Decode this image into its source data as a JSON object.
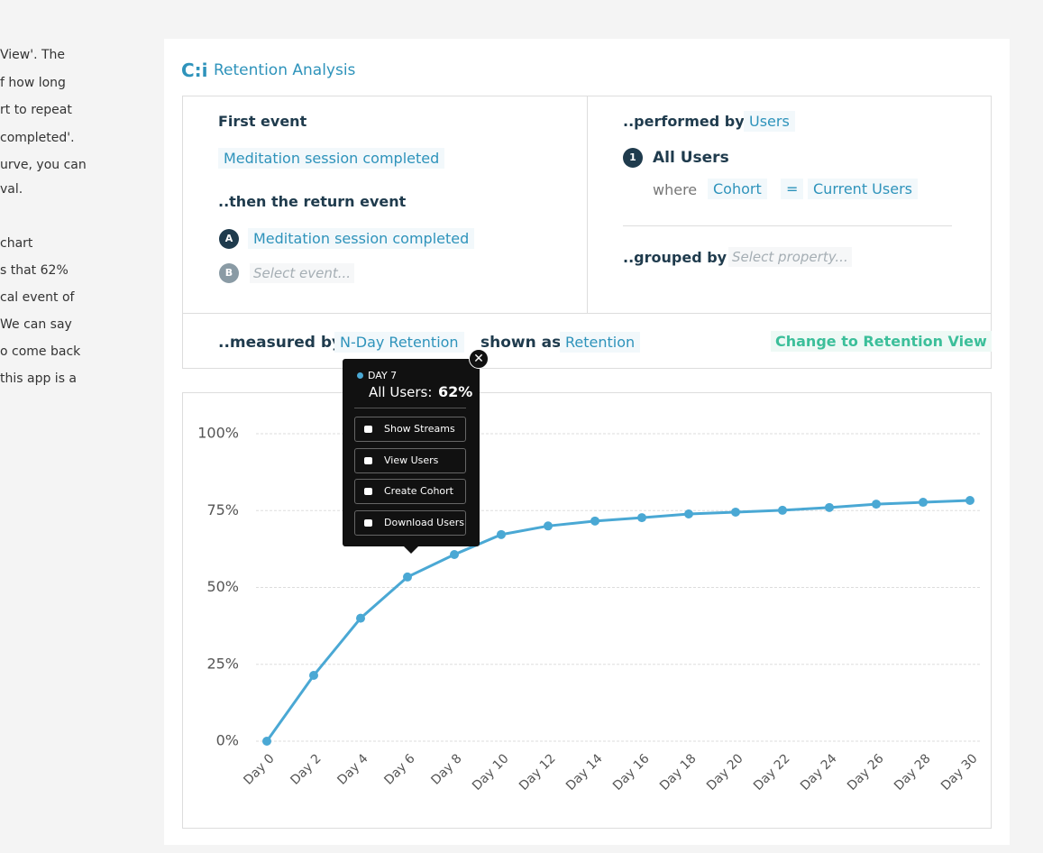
{
  "side_text": {
    "lines": [
      "View'. The",
      "f how long",
      "rt to repeat",
      "completed'.",
      "urve, you can",
      "val.",
      "chart",
      "s that 62%",
      "cal event of",
      "We can say",
      "o come back",
      "this app is a"
    ]
  },
  "panel": {
    "title": "Retention Analysis",
    "first_event": {
      "label": "First event",
      "value": "Meditation session completed"
    },
    "return_event": {
      "label": "..then the return event",
      "items": [
        {
          "badge": "A",
          "text": "Meditation session completed"
        },
        {
          "badge": "B",
          "text": "Select event..."
        }
      ]
    },
    "performed_by": {
      "label": "..performed by",
      "value": "Users",
      "badge": "1",
      "group": "All Users",
      "where": "where",
      "field": "Cohort",
      "op": "=",
      "operand": "Current Users"
    },
    "grouped_by": {
      "label": "..grouped by",
      "placeholder": "Select property..."
    },
    "measured_by": {
      "label": "..measured by",
      "value": "N-Day Retention",
      "shown_as": "shown as",
      "shown_value": "Retention",
      "action": "Change to Retention View"
    }
  },
  "tooltip": {
    "day": "DAY 7",
    "series": "All Users:",
    "value": "62%",
    "buttons": [
      "Show Streams",
      "View Users",
      "Create Cohort",
      "Download Users"
    ]
  },
  "chart_data": {
    "type": "line",
    "categories": [
      "Day 0",
      "Day 2",
      "Day 4",
      "Day 6",
      "Day 8",
      "Day 10",
      "Day 12",
      "Day 14",
      "Day 16",
      "Day 18",
      "Day 20",
      "Day 22",
      "Day 24",
      "Day 26",
      "Day 28",
      "Day 30"
    ],
    "values": [
      0,
      21.4,
      40,
      53.4,
      60.7,
      67.2,
      70,
      71.6,
      72.7,
      73.9,
      74.5,
      75.1,
      76,
      77.1,
      77.7,
      78.3
    ],
    "color": "#4aa8d4",
    "ylim": [
      0,
      100
    ],
    "yticks": [
      {
        "value": 0,
        "label": "0%"
      },
      {
        "value": 25,
        "label": "25%"
      },
      {
        "value": 50,
        "label": "50%"
      },
      {
        "value": 75,
        "label": "75%"
      },
      {
        "value": 100,
        "label": "100%"
      }
    ],
    "grid": true
  }
}
